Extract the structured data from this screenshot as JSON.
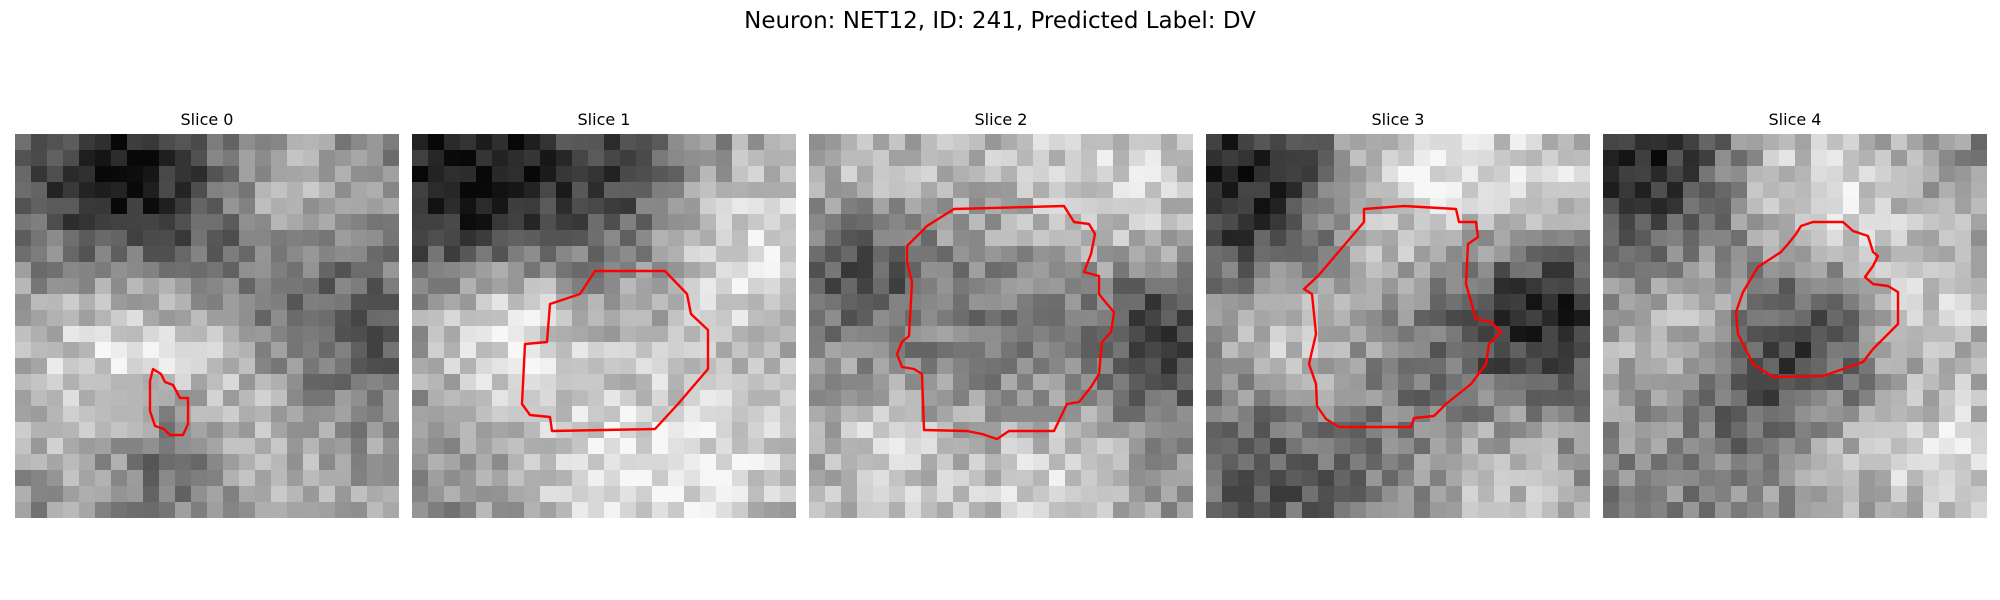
{
  "figure": {
    "title": "Neuron: NET12, ID: 241, Predicted Label: DV",
    "contour_color": "#ff0000"
  },
  "panels": [
    {
      "title": "Slice 0"
    },
    {
      "title": "Slice 1"
    },
    {
      "title": "Slice 2"
    },
    {
      "title": "Slice 3"
    },
    {
      "title": "Slice 4"
    }
  ]
}
